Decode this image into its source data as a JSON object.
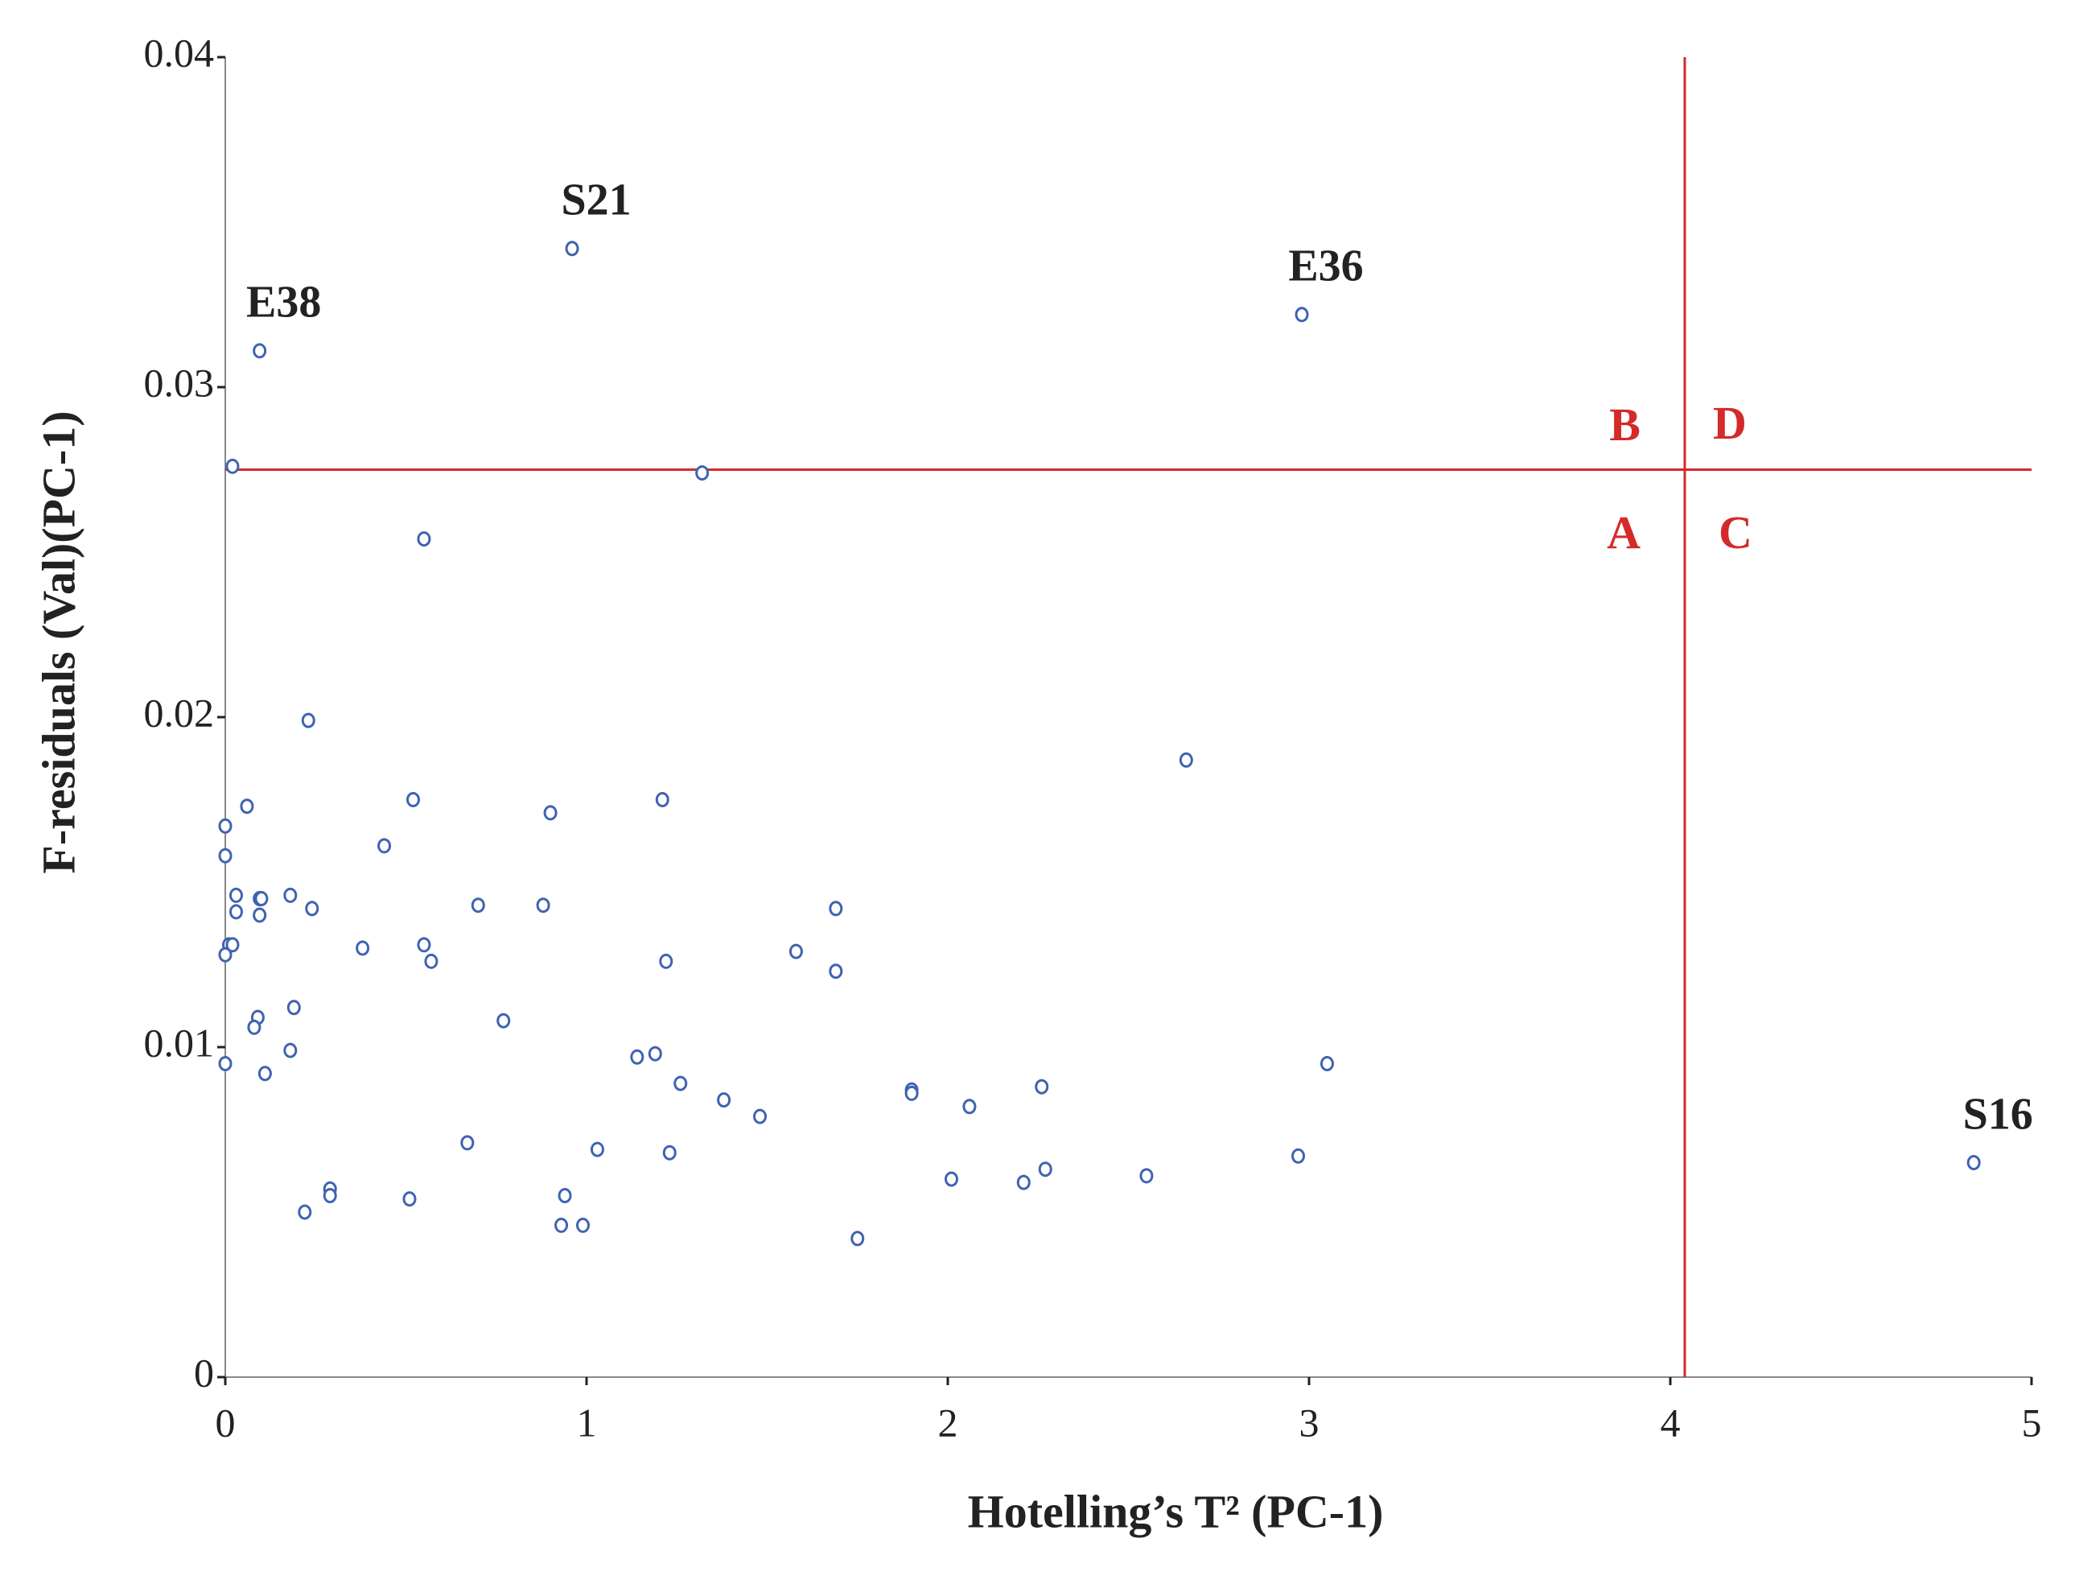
{
  "chart_data": {
    "type": "scatter",
    "x_label": "Hotelling’s T² (PC-1)",
    "y_label": "F-residuals (Val)(PC-1)",
    "color": "#3f63b0",
    "xlim": [
      0,
      5
    ],
    "xticks": [
      0,
      1,
      2,
      3,
      4,
      5
    ],
    "ylim": [
      0,
      0.04
    ],
    "yticks": [
      0,
      0.01,
      0.02,
      0.03,
      0.04
    ],
    "threshold_x": 4.04,
    "threshold_y": 0.0275,
    "threshold_color": "#d42a2a",
    "quadrant_labels": {
      "upper_left": "B",
      "upper_right": "D",
      "lower_left": "A",
      "lower_right": "C"
    },
    "x": [
      0.095,
      0.96,
      2.98,
      4.84,
      0.02,
      1.32,
      0.55,
      0.23,
      2.66,
      0,
      0.06,
      0.52,
      0.9,
      1.21,
      0.44,
      0.0,
      0.03,
      0.03,
      0.095,
      0.1,
      0.095,
      0.18,
      0.24,
      0.7,
      0.88,
      1.69,
      0.01,
      0.02,
      0.0,
      0.38,
      0.55,
      0.57,
      1.22,
      1.58,
      1.69,
      0.19,
      0.09,
      0.08,
      0.77,
      0.18,
      0,
      0.11,
      1.14,
      1.19,
      1.26,
      1.38,
      1.48,
      1.9,
      1.9,
      2.06,
      2.26,
      3.05,
      0.67,
      1.03,
      1.23,
      2.97,
      2.27,
      2.01,
      2.21,
      2.55,
      0.29,
      0.29,
      0.51,
      0.94,
      0.22,
      0.93,
      0.99,
      1.75
    ],
    "values": [
      0.0311,
      0.0342,
      0.0322,
      0.0065,
      0.0276,
      0.0274,
      0.0254,
      0.0199,
      0.0187,
      0.0167,
      0.0173,
      0.0175,
      0.0171,
      0.0175,
      0.0161,
      0.0158,
      0.0146,
      0.0141,
      0.0145,
      0.0145,
      0.014,
      0.0146,
      0.0142,
      0.0143,
      0.0143,
      0.0142,
      0.0131,
      0.0131,
      0.0128,
      0.013,
      0.0131,
      0.0126,
      0.0126,
      0.0129,
      0.0123,
      0.0112,
      0.0109,
      0.0106,
      0.0108,
      0.0099,
      0.0095,
      0.0092,
      0.0097,
      0.0098,
      0.0089,
      0.0084,
      0.0079,
      0.0087,
      0.0086,
      0.0082,
      0.0088,
      0.0095,
      0.0071,
      0.0069,
      0.0068,
      0.0067,
      0.0063,
      0.006,
      0.0059,
      0.0061,
      0.0057,
      0.0055,
      0.0054,
      0.0055,
      0.005,
      0.0046,
      0.0046,
      0.0042
    ],
    "point_labels": [
      "E38",
      "S21",
      "E36",
      "S16",
      null,
      null,
      null,
      null,
      null,
      null,
      null,
      null,
      null,
      null,
      null,
      null,
      null,
      null,
      null,
      null,
      null,
      null,
      null,
      null,
      null,
      null,
      null,
      null,
      null,
      null,
      null,
      null,
      null,
      null,
      null,
      null,
      null,
      null,
      null,
      null,
      null,
      null,
      null,
      null,
      null,
      null,
      null,
      null,
      null,
      null,
      null,
      null,
      null,
      null,
      null,
      null,
      null,
      null,
      null,
      null,
      null,
      null,
      null,
      null,
      null,
      null,
      null,
      null
    ]
  }
}
